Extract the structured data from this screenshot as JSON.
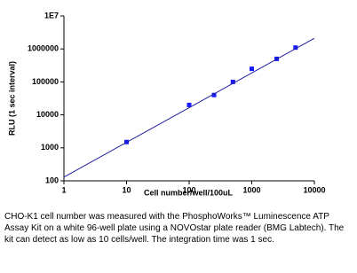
{
  "chart_data": {
    "type": "scatter",
    "x_label": "Cell number/well/100uL",
    "y_label": "RLU (1 sec interval)",
    "xscale": "log",
    "yscale": "log",
    "xlim": [
      1,
      10000
    ],
    "xticks": [
      1,
      10,
      100,
      1000,
      10000
    ],
    "ylim": [
      100,
      10000000
    ],
    "yticks": [
      100,
      1000,
      10000,
      100000,
      1000000,
      {
        "value": 10000000,
        "label": "1E7"
      }
    ],
    "series": [
      {
        "style": "markers",
        "color": "#1a1aff",
        "x": [
          10,
          100,
          250,
          500,
          1000,
          2500,
          5000
        ],
        "values": [
          1500,
          20000,
          40000,
          100000,
          250000,
          500000,
          1100000
        ]
      },
      {
        "style": "line",
        "color": "#1f1f9f",
        "x": [
          1,
          10000
        ],
        "values": [
          130,
          2100000
        ]
      }
    ]
  },
  "caption": "CHO-K1 cell number was measured with the PhosphoWorks™ Luminescence ATP Assay Kit on a white 96-well plate using a NOVOstar plate reader (BMG Labtech). The kit can detect as low as 10 cells/well. The integration time was 1 sec."
}
